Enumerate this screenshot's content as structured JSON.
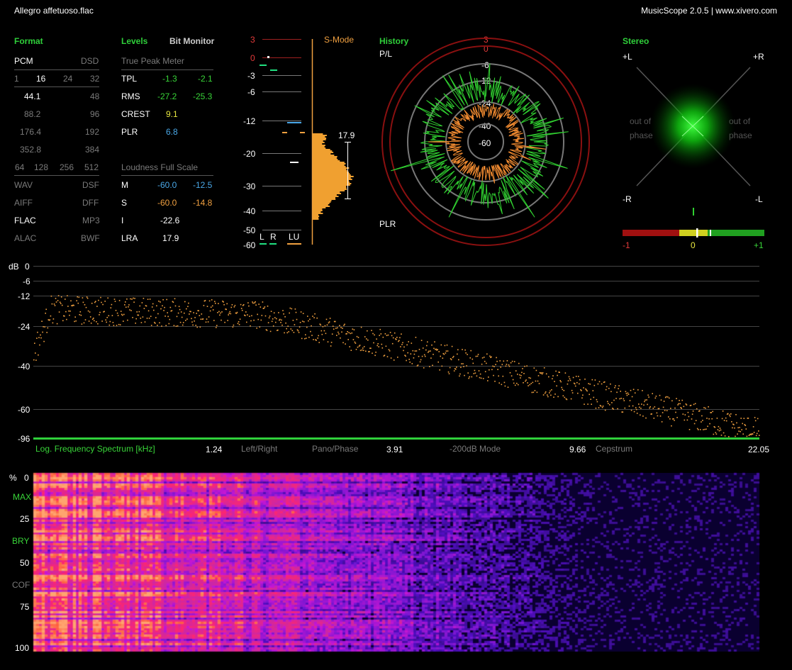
{
  "title_bar": {
    "file": "Allegro affetuoso.flac",
    "app": "MusicScope 2.0.5 | www.xivero.com"
  },
  "format": {
    "header": "Format",
    "pcm": "PCM",
    "dsd": "DSD",
    "bits": [
      "1",
      "16",
      "24",
      "32"
    ],
    "rates_left": [
      "44.1",
      "88.2",
      "176.4",
      "352.8"
    ],
    "rates_right": [
      "48",
      "96",
      "192",
      "384"
    ],
    "dsd_rates": [
      "64",
      "128",
      "256",
      "512"
    ],
    "types_left": [
      "WAV",
      "AIFF",
      "FLAC",
      "ALAC"
    ],
    "types_right": [
      "DSF",
      "DFF",
      "MP3",
      "BWF"
    ]
  },
  "levels": {
    "header": "Levels",
    "bit_monitor": "Bit Monitor",
    "true_peak_title": "True Peak Meter",
    "rows": [
      {
        "label": "TPL",
        "l": "-1.3",
        "r": "-2.1"
      },
      {
        "label": "RMS",
        "l": "-27.2",
        "r": "-25.3"
      },
      {
        "label": "CREST",
        "l": "9.1",
        "r": ""
      },
      {
        "label": "PLR",
        "l": "6.8",
        "r": ""
      }
    ],
    "loudness_title": "Loudness Full Scale",
    "loudness": [
      {
        "label": "M",
        "a": "-60.0",
        "b": "-12.5"
      },
      {
        "label": "S",
        "a": "-60.0",
        "b": "-14.8"
      },
      {
        "label": "I",
        "a": "-22.6",
        "b": ""
      },
      {
        "label": "LRA",
        "a": "17.9",
        "b": ""
      }
    ]
  },
  "meter": {
    "scale": [
      "3",
      "0",
      "-3",
      "-6",
      "-12",
      "-20",
      "-30",
      "-40",
      "-50",
      "-60"
    ],
    "s_mode": "S-Mode",
    "lra_value": "17.9",
    "channels": [
      "L",
      "R",
      "LU"
    ]
  },
  "history": {
    "header": "History",
    "top_label": "P/L",
    "bottom_label": "PLR",
    "rings": [
      "3",
      "0",
      "-6",
      "-12",
      "-24",
      "-40",
      "-60"
    ]
  },
  "stereo": {
    "header": "Stereo",
    "tl": "+L",
    "tr": "+R",
    "bl": "-R",
    "br": "-L",
    "oop_left": [
      "out of",
      "phase"
    ],
    "oop_right": [
      "out of",
      "phase"
    ],
    "corr_labels": [
      "-1",
      "0",
      "+1"
    ],
    "correlation": 0.05
  },
  "spectrum": {
    "unit": "dB",
    "y_ticks": [
      "0",
      "-6",
      "-12",
      "-24",
      "-40",
      "-60",
      "-96"
    ],
    "mode_label": "Log. Frequency Spectrum [kHz]",
    "x_ticks": [
      "1.24",
      "3.91",
      "9.66",
      "22.05"
    ],
    "options": [
      "Left/Right",
      "Pano/Phase",
      "-200dB Mode",
      "Cepstrum"
    ]
  },
  "spectrogram": {
    "y_labels": [
      "%",
      "0",
      "MAX",
      "25",
      "BRY",
      "50",
      "COF",
      "75",
      "100"
    ]
  }
}
